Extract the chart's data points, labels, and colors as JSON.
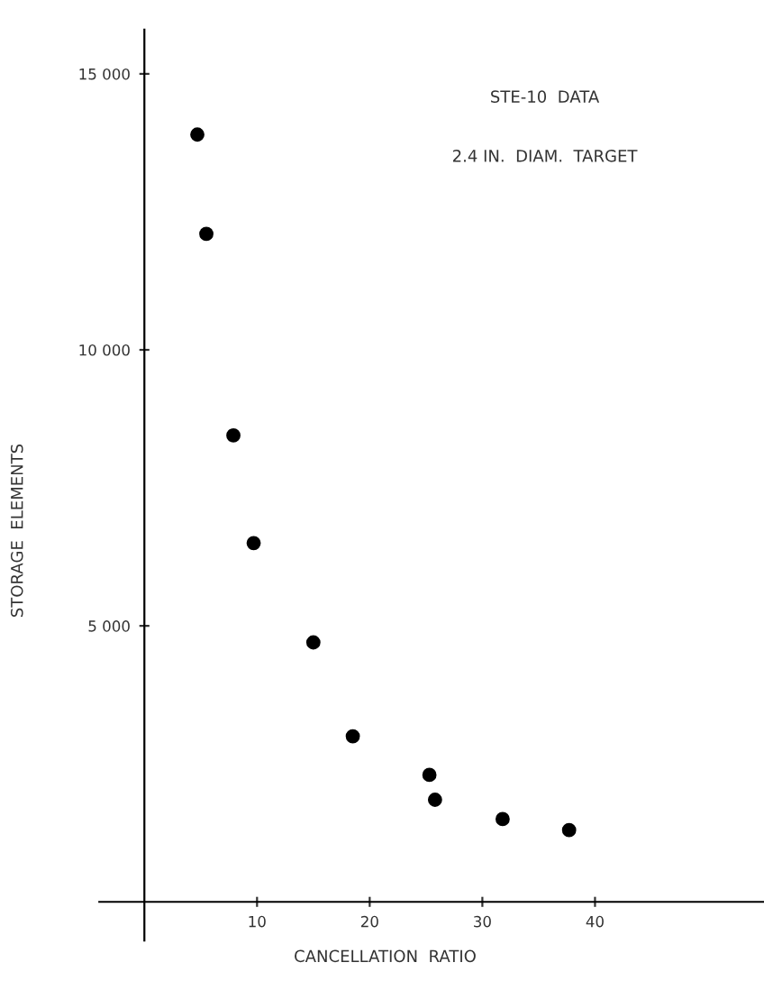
{
  "chart_data": {
    "type": "scatter",
    "xlabel": "CANCELLATION  RATIO",
    "ylabel": "STORAGE  ELEMENTS",
    "annotations": [
      "STE-10  DATA",
      "2.4 IN.  DIAM.  TARGET"
    ],
    "x": [
      4.7,
      5.5,
      7.9,
      9.7,
      15.0,
      18.5,
      25.3,
      25.8,
      31.8,
      37.7
    ],
    "series": [
      {
        "color": "#000000",
        "values": [
          13900,
          12100,
          8450,
          6500,
          4700,
          3000,
          2300,
          1850,
          1500,
          1300
        ]
      }
    ],
    "marker": "circle",
    "grid": false,
    "xlim": [
      -4,
      55
    ],
    "ylim": [
      -700,
      15800
    ],
    "xticks": [
      10,
      20,
      30,
      40
    ],
    "yticks": [
      {
        "value": 5000,
        "label": "5 000"
      },
      {
        "value": 10000,
        "label": "10 000"
      },
      {
        "value": 15000,
        "label": "15 000"
      }
    ]
  }
}
